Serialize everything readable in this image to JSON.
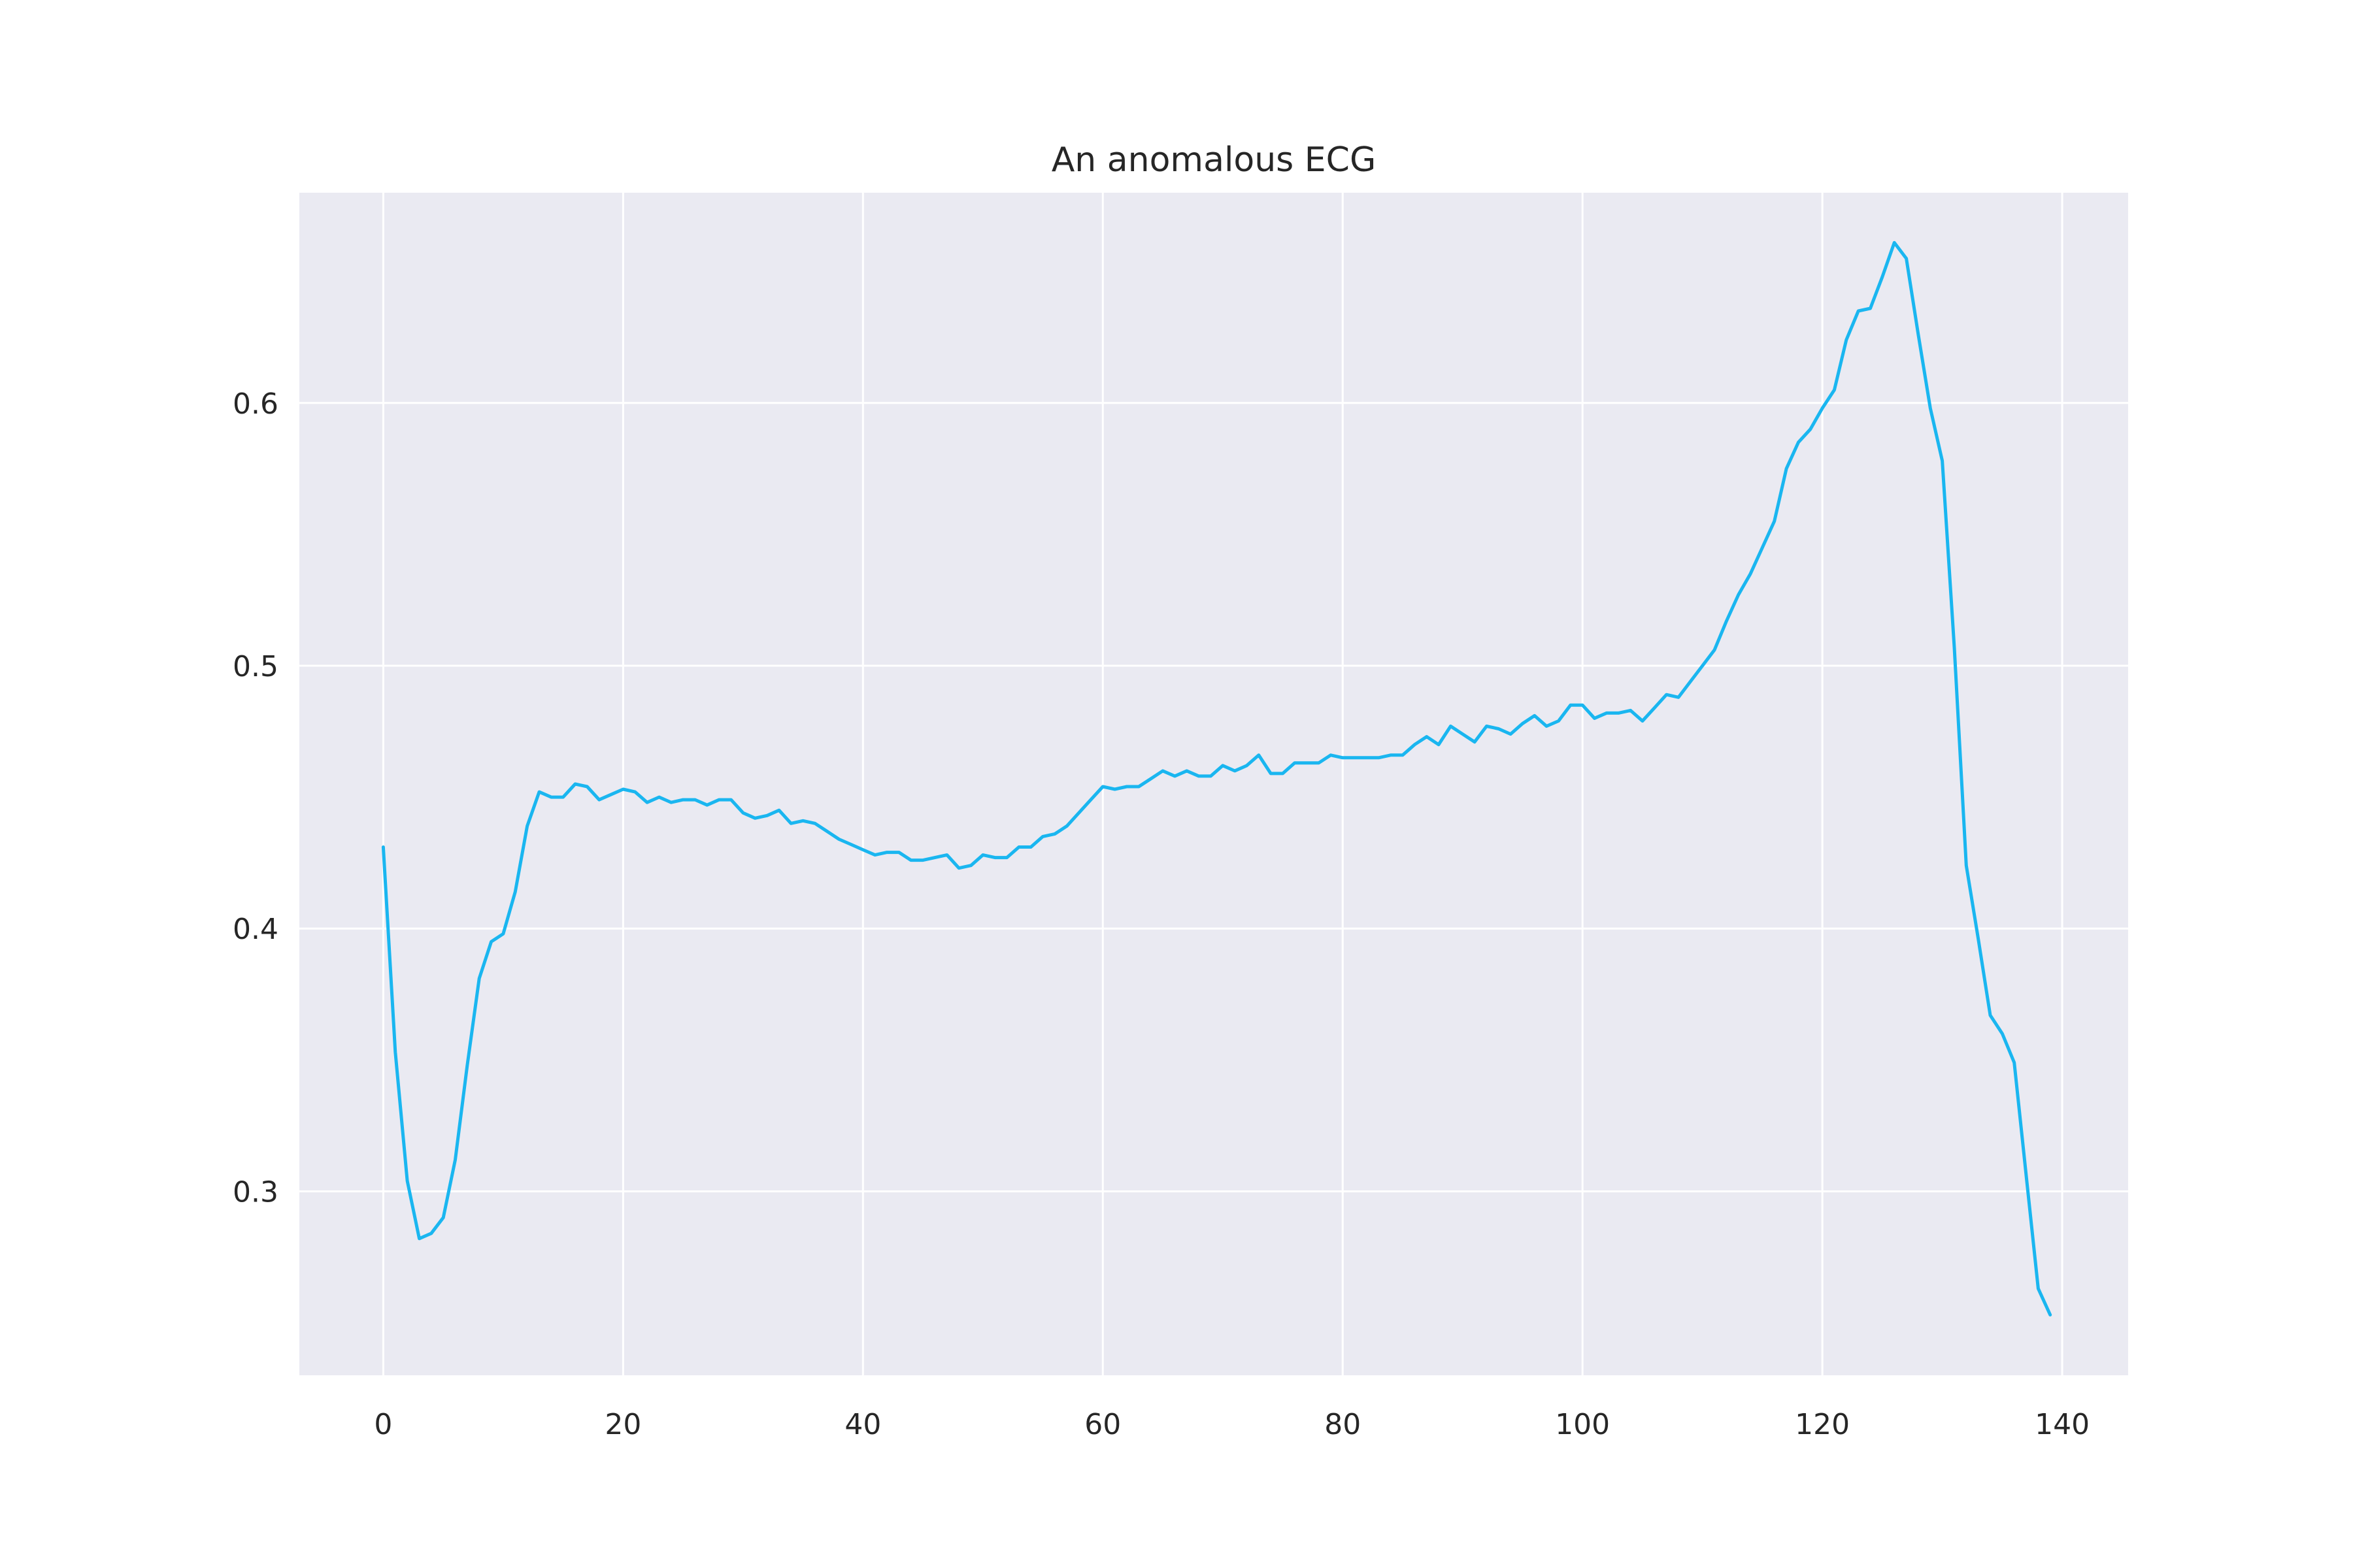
{
  "chart_data": {
    "type": "line",
    "title": "An anomalous ECG",
    "xlabel": "",
    "ylabel": "",
    "xlim": [
      -7,
      145.5
    ],
    "ylim": [
      0.23,
      0.68
    ],
    "xticks": [
      0,
      20,
      40,
      60,
      80,
      100,
      120,
      140
    ],
    "xtick_labels": [
      "0",
      "20",
      "40",
      "60",
      "80",
      "100",
      "120",
      "140"
    ],
    "yticks": [
      0.3,
      0.4,
      0.5,
      0.6
    ],
    "ytick_labels": [
      "0.3",
      "0.4",
      "0.5",
      "0.6"
    ],
    "grid": true,
    "colors": {
      "background": "#eaeaf2",
      "grid": "#ffffff",
      "line": "#1ab6f0",
      "text": "#262626"
    },
    "series": [
      {
        "x": [
          0,
          1,
          2,
          3,
          4,
          5,
          6,
          7,
          8,
          9,
          10,
          11,
          12,
          13,
          14,
          15,
          16,
          17,
          18,
          19,
          20,
          21,
          22,
          23,
          24,
          25,
          26,
          27,
          28,
          29,
          30,
          31,
          32,
          33,
          34,
          35,
          36,
          37,
          38,
          39,
          40,
          41,
          42,
          43,
          44,
          45,
          46,
          47,
          48,
          49,
          50,
          51,
          52,
          53,
          54,
          55,
          56,
          57,
          58,
          59,
          60,
          61,
          62,
          63,
          64,
          65,
          66,
          67,
          68,
          69,
          70,
          71,
          72,
          73,
          74,
          75,
          76,
          77,
          78,
          79,
          80,
          81,
          82,
          83,
          84,
          85,
          86,
          87,
          88,
          89,
          90,
          91,
          92,
          93,
          94,
          95,
          96,
          97,
          98,
          99,
          100,
          101,
          102,
          103,
          104,
          105,
          106,
          107,
          108,
          109,
          110,
          111,
          112,
          113,
          114,
          115,
          116,
          117,
          118,
          119,
          120,
          121,
          122,
          123,
          124,
          125,
          126,
          127,
          128,
          129,
          130,
          131,
          132,
          133,
          134,
          135,
          136,
          137,
          138,
          139
        ],
        "values": [
          0.431,
          0.353,
          0.304,
          0.282,
          0.284,
          0.29,
          0.312,
          0.348,
          0.381,
          0.395,
          0.398,
          0.414,
          0.439,
          0.452,
          0.45,
          0.45,
          0.455,
          0.454,
          0.449,
          0.451,
          0.453,
          0.452,
          0.448,
          0.45,
          0.448,
          0.449,
          0.449,
          0.447,
          0.449,
          0.449,
          0.444,
          0.442,
          0.443,
          0.445,
          0.44,
          0.441,
          0.44,
          0.437,
          0.434,
          0.432,
          0.43,
          0.428,
          0.429,
          0.429,
          0.426,
          0.426,
          0.427,
          0.428,
          0.423,
          0.424,
          0.428,
          0.427,
          0.427,
          0.431,
          0.431,
          0.435,
          0.436,
          0.439,
          0.444,
          0.449,
          0.454,
          0.453,
          0.454,
          0.454,
          0.457,
          0.46,
          0.458,
          0.46,
          0.458,
          0.458,
          0.462,
          0.46,
          0.462,
          0.466,
          0.459,
          0.459,
          0.463,
          0.463,
          0.463,
          0.466,
          0.465,
          0.465,
          0.465,
          0.465,
          0.466,
          0.466,
          0.47,
          0.473,
          0.47,
          0.477,
          0.474,
          0.471,
          0.477,
          0.476,
          0.474,
          0.478,
          0.481,
          0.477,
          0.479,
          0.485,
          0.485,
          0.48,
          0.482,
          0.482,
          0.483,
          0.479,
          0.484,
          0.489,
          0.488,
          0.494,
          0.5,
          0.506,
          0.517,
          0.527,
          0.535,
          0.545,
          0.555,
          0.575,
          0.585,
          0.59,
          0.598,
          0.605,
          0.624,
          0.635,
          0.636,
          0.648,
          0.661,
          0.655,
          0.626,
          0.598,
          0.578,
          0.507,
          0.424,
          0.396,
          0.367,
          0.36,
          0.349,
          0.306,
          0.263,
          0.253
        ]
      }
    ]
  }
}
